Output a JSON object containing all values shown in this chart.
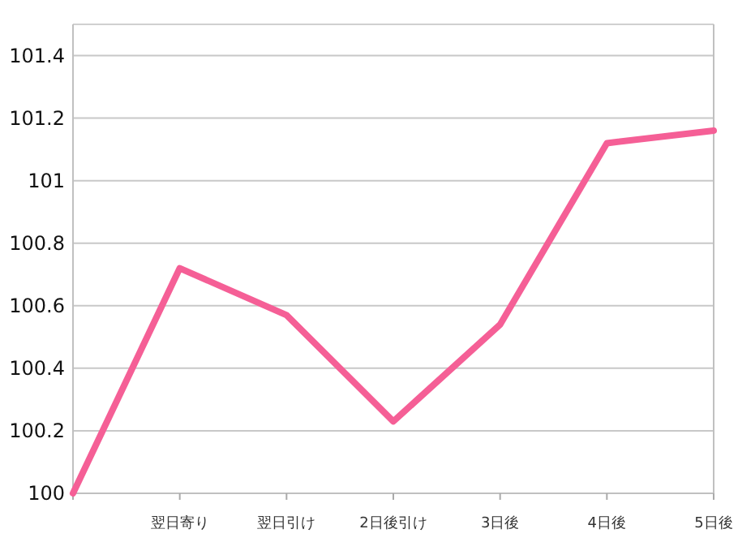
{
  "chart_data": {
    "type": "line",
    "categories": [
      null,
      "翌日寄り",
      "翌日引け",
      "2日後引け",
      "3日後",
      "4日後",
      "5日後"
    ],
    "values": [
      100,
      100.72,
      100.57,
      100.23,
      100.54,
      101.12,
      101.16
    ],
    "color": "#f55f96",
    "ylim": [
      100,
      101.5
    ],
    "yticks": [
      100,
      100.2,
      100.4,
      100.6,
      100.8,
      101,
      101.2,
      101.4
    ],
    "grid": "y",
    "marker": "none",
    "line_style": "solid"
  }
}
